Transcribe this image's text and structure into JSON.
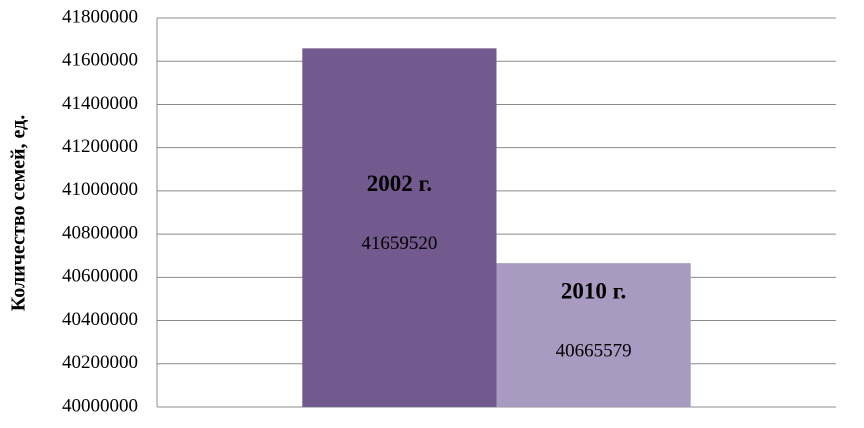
{
  "chart_data": {
    "type": "bar",
    "y_label": "Количество семей, ед.",
    "categories": [
      null
    ],
    "series": [
      {
        "name": "2002 г.",
        "color": "#725a8e",
        "values": [
          41659520
        ]
      },
      {
        "name": "2010 г.",
        "color": "#a89ac0",
        "values": [
          40665579
        ]
      }
    ],
    "ylim": [
      40000000,
      41800000
    ],
    "yticks": [
      40000000,
      40200000,
      40400000,
      40600000,
      40800000,
      41000000,
      41200000,
      41400000,
      41600000,
      41800000
    ],
    "grid": true
  }
}
